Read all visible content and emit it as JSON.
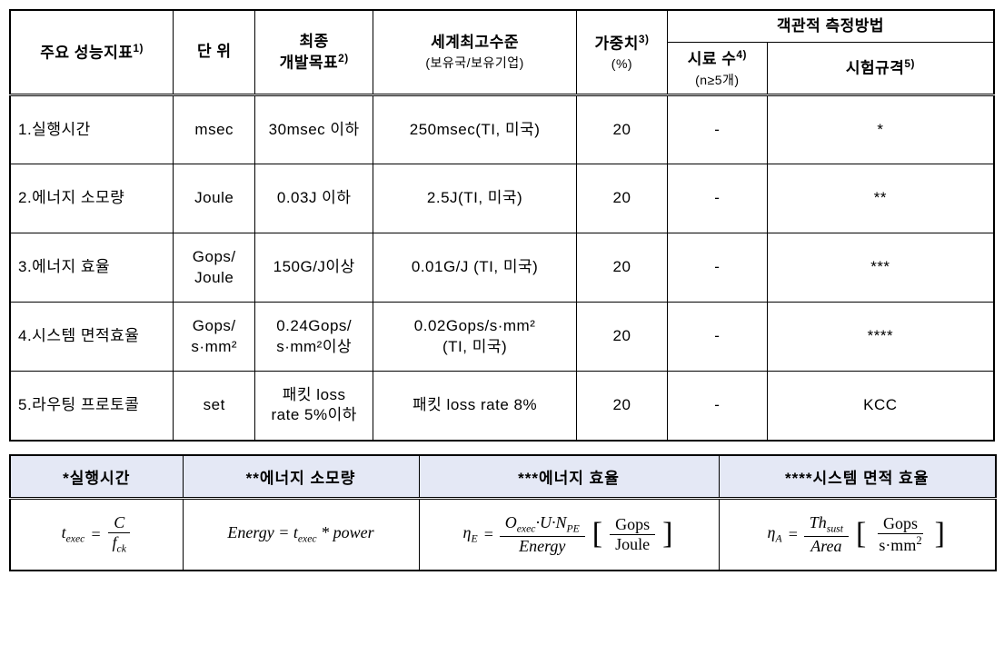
{
  "main_table": {
    "header": {
      "metric": "주요 성능지표",
      "metric_sup": "1)",
      "unit": "단 위",
      "target": "최종\n개발목표",
      "target_sup": "2)",
      "world": "세계최고수준",
      "world_sub": "(보유국/보유기업)",
      "weight": "가중치",
      "weight_sup": "3)",
      "weight_sub": "(%)",
      "objective_group": "객관적 측정방법",
      "sample": "시료 수",
      "sample_sup": "4)",
      "sample_sub": "(n≥5개)",
      "test": "시험규격",
      "test_sup": "5)"
    },
    "col_widths": [
      "180px",
      "90px",
      "130px",
      "224px",
      "100px",
      "110px",
      "250px"
    ],
    "rows": [
      {
        "metric": "1.실행시간",
        "unit": "msec",
        "target": "30msec 이하",
        "world": "250msec(TI, 미국)",
        "weight": "20",
        "sample": "-",
        "test": "*"
      },
      {
        "metric": "2.에너지 소모량",
        "unit": "Joule",
        "target": "0.03J 이하",
        "world": "2.5J(TI, 미국)",
        "weight": "20",
        "sample": "-",
        "test": "**"
      },
      {
        "metric": "3.에너지 효율",
        "unit": "Gops/\nJoule",
        "target": "150G/J이상",
        "world": "0.01G/J (TI, 미국)",
        "weight": "20",
        "sample": "-",
        "test": "***"
      },
      {
        "metric": "4.시스템 면적효율",
        "unit": "Gops/\ns·mm²",
        "target": "0.24Gops/\ns·mm²이상",
        "world": "0.02Gops/s·mm²\n(TI, 미국)",
        "weight": "20",
        "sample": "-",
        "test": "****"
      },
      {
        "metric": "5.라우팅 프로토콜",
        "unit": "set",
        "target": "패킷 loss\nrate 5%이하",
        "world": "패킷 loss rate 8%",
        "weight": "20",
        "sample": "-",
        "test": "KCC"
      }
    ]
  },
  "formula_table": {
    "headers": [
      "*실행시간",
      "**에너지 소모량",
      "***에너지 효율",
      "****시스템 면적 효율"
    ],
    "col_widths": [
      "190px",
      "260px",
      "330px",
      "305px"
    ],
    "formulas": {
      "exec_time": {
        "lhs": "t",
        "lhs_sub": "exec",
        "num": "C",
        "den_var": "f",
        "den_sub": "ck"
      },
      "energy": {
        "text": "Energy = t",
        "sub": "exec",
        "suffix": " * power"
      },
      "efficiency": {
        "lhs": "η",
        "lhs_sub": "E",
        "num": "O",
        "num_sub": "exec",
        "num_rest": "·U·N",
        "num_sub2": "PE",
        "den": "Energy",
        "unit_num": "Gops",
        "unit_den": "Joule"
      },
      "area": {
        "lhs": "η",
        "lhs_sub": "A",
        "num": "Th",
        "num_sub": "sust",
        "den": "Area",
        "unit_num": "Gops",
        "unit_den": "s·mm",
        "unit_den_sup": "2"
      }
    }
  },
  "colors": {
    "border": "#000000",
    "header_bg": "#e4e8f5",
    "bg": "#ffffff"
  }
}
